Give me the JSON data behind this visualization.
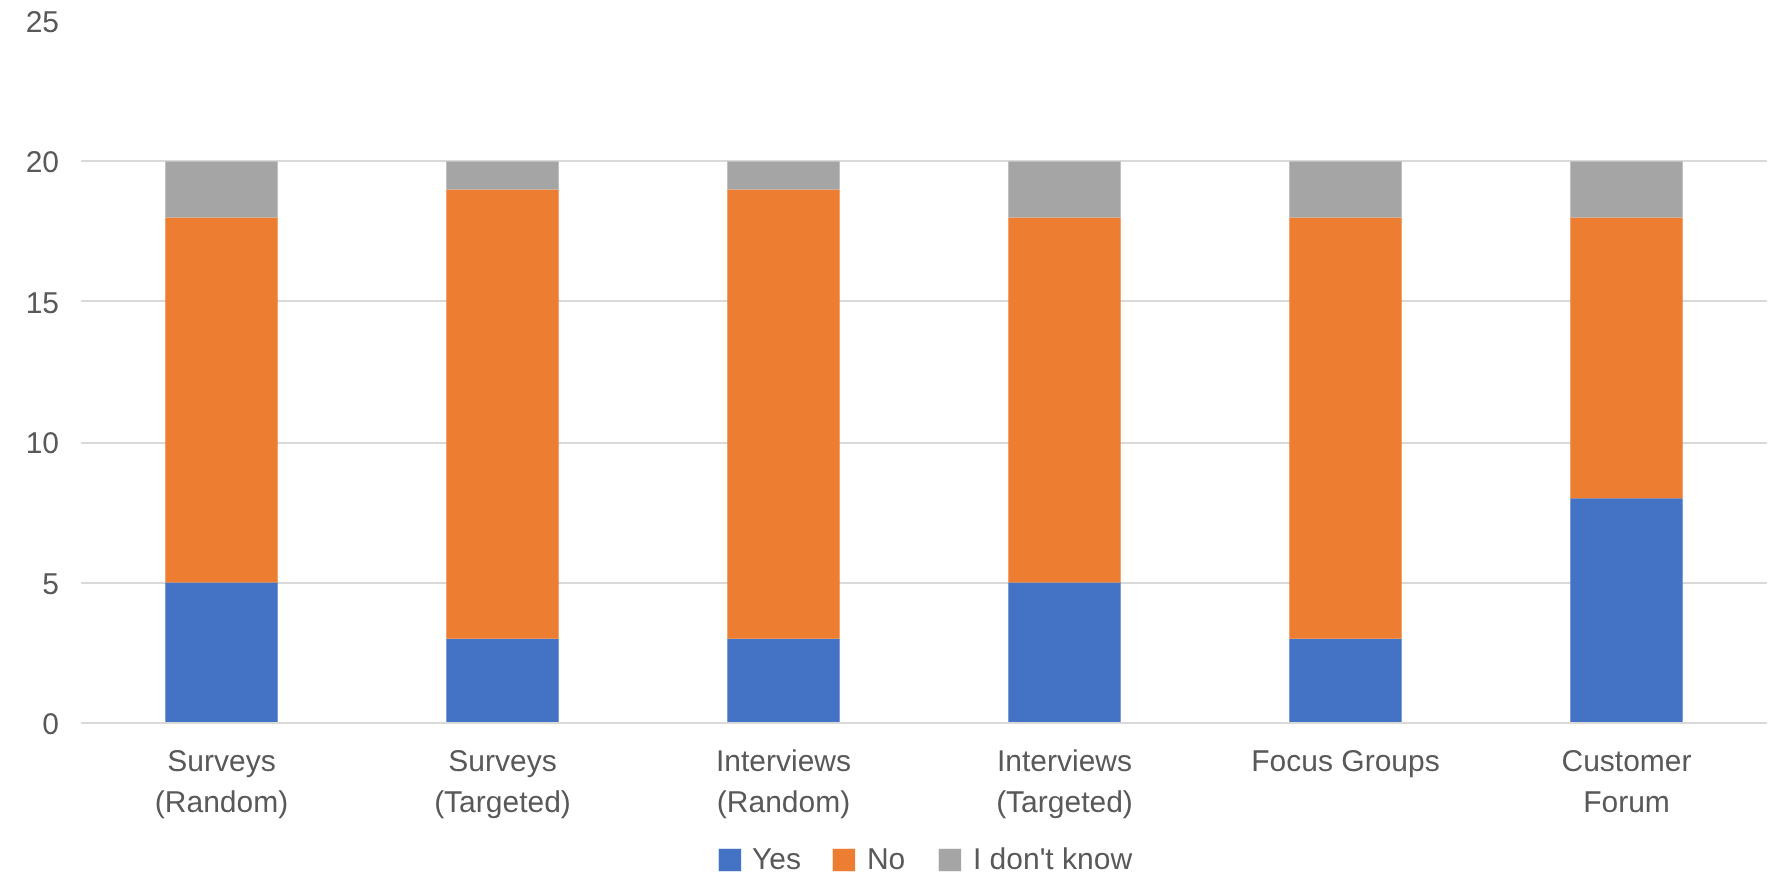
{
  "chart_data": {
    "type": "bar",
    "stacked": true,
    "categories": [
      "Surveys\n(Random)",
      "Surveys\n(Targeted)",
      "Interviews\n(Random)",
      "Interviews\n(Targeted)",
      "Focus Groups",
      "Customer\nForum"
    ],
    "series": [
      {
        "name": "Yes",
        "color": "#4472c4",
        "values": [
          5,
          3,
          3,
          5,
          3,
          8
        ]
      },
      {
        "name": "No",
        "color": "#ed7d31",
        "values": [
          13,
          16,
          16,
          13,
          15,
          10
        ]
      },
      {
        "name": "I don't know",
        "color": "#a5a5a5",
        "values": [
          2,
          1,
          1,
          2,
          2,
          2
        ]
      }
    ],
    "ylim": [
      0,
      25
    ],
    "yticks": [
      0,
      5,
      10,
      15,
      20,
      25
    ],
    "grid": "y",
    "legend": "bottom"
  }
}
